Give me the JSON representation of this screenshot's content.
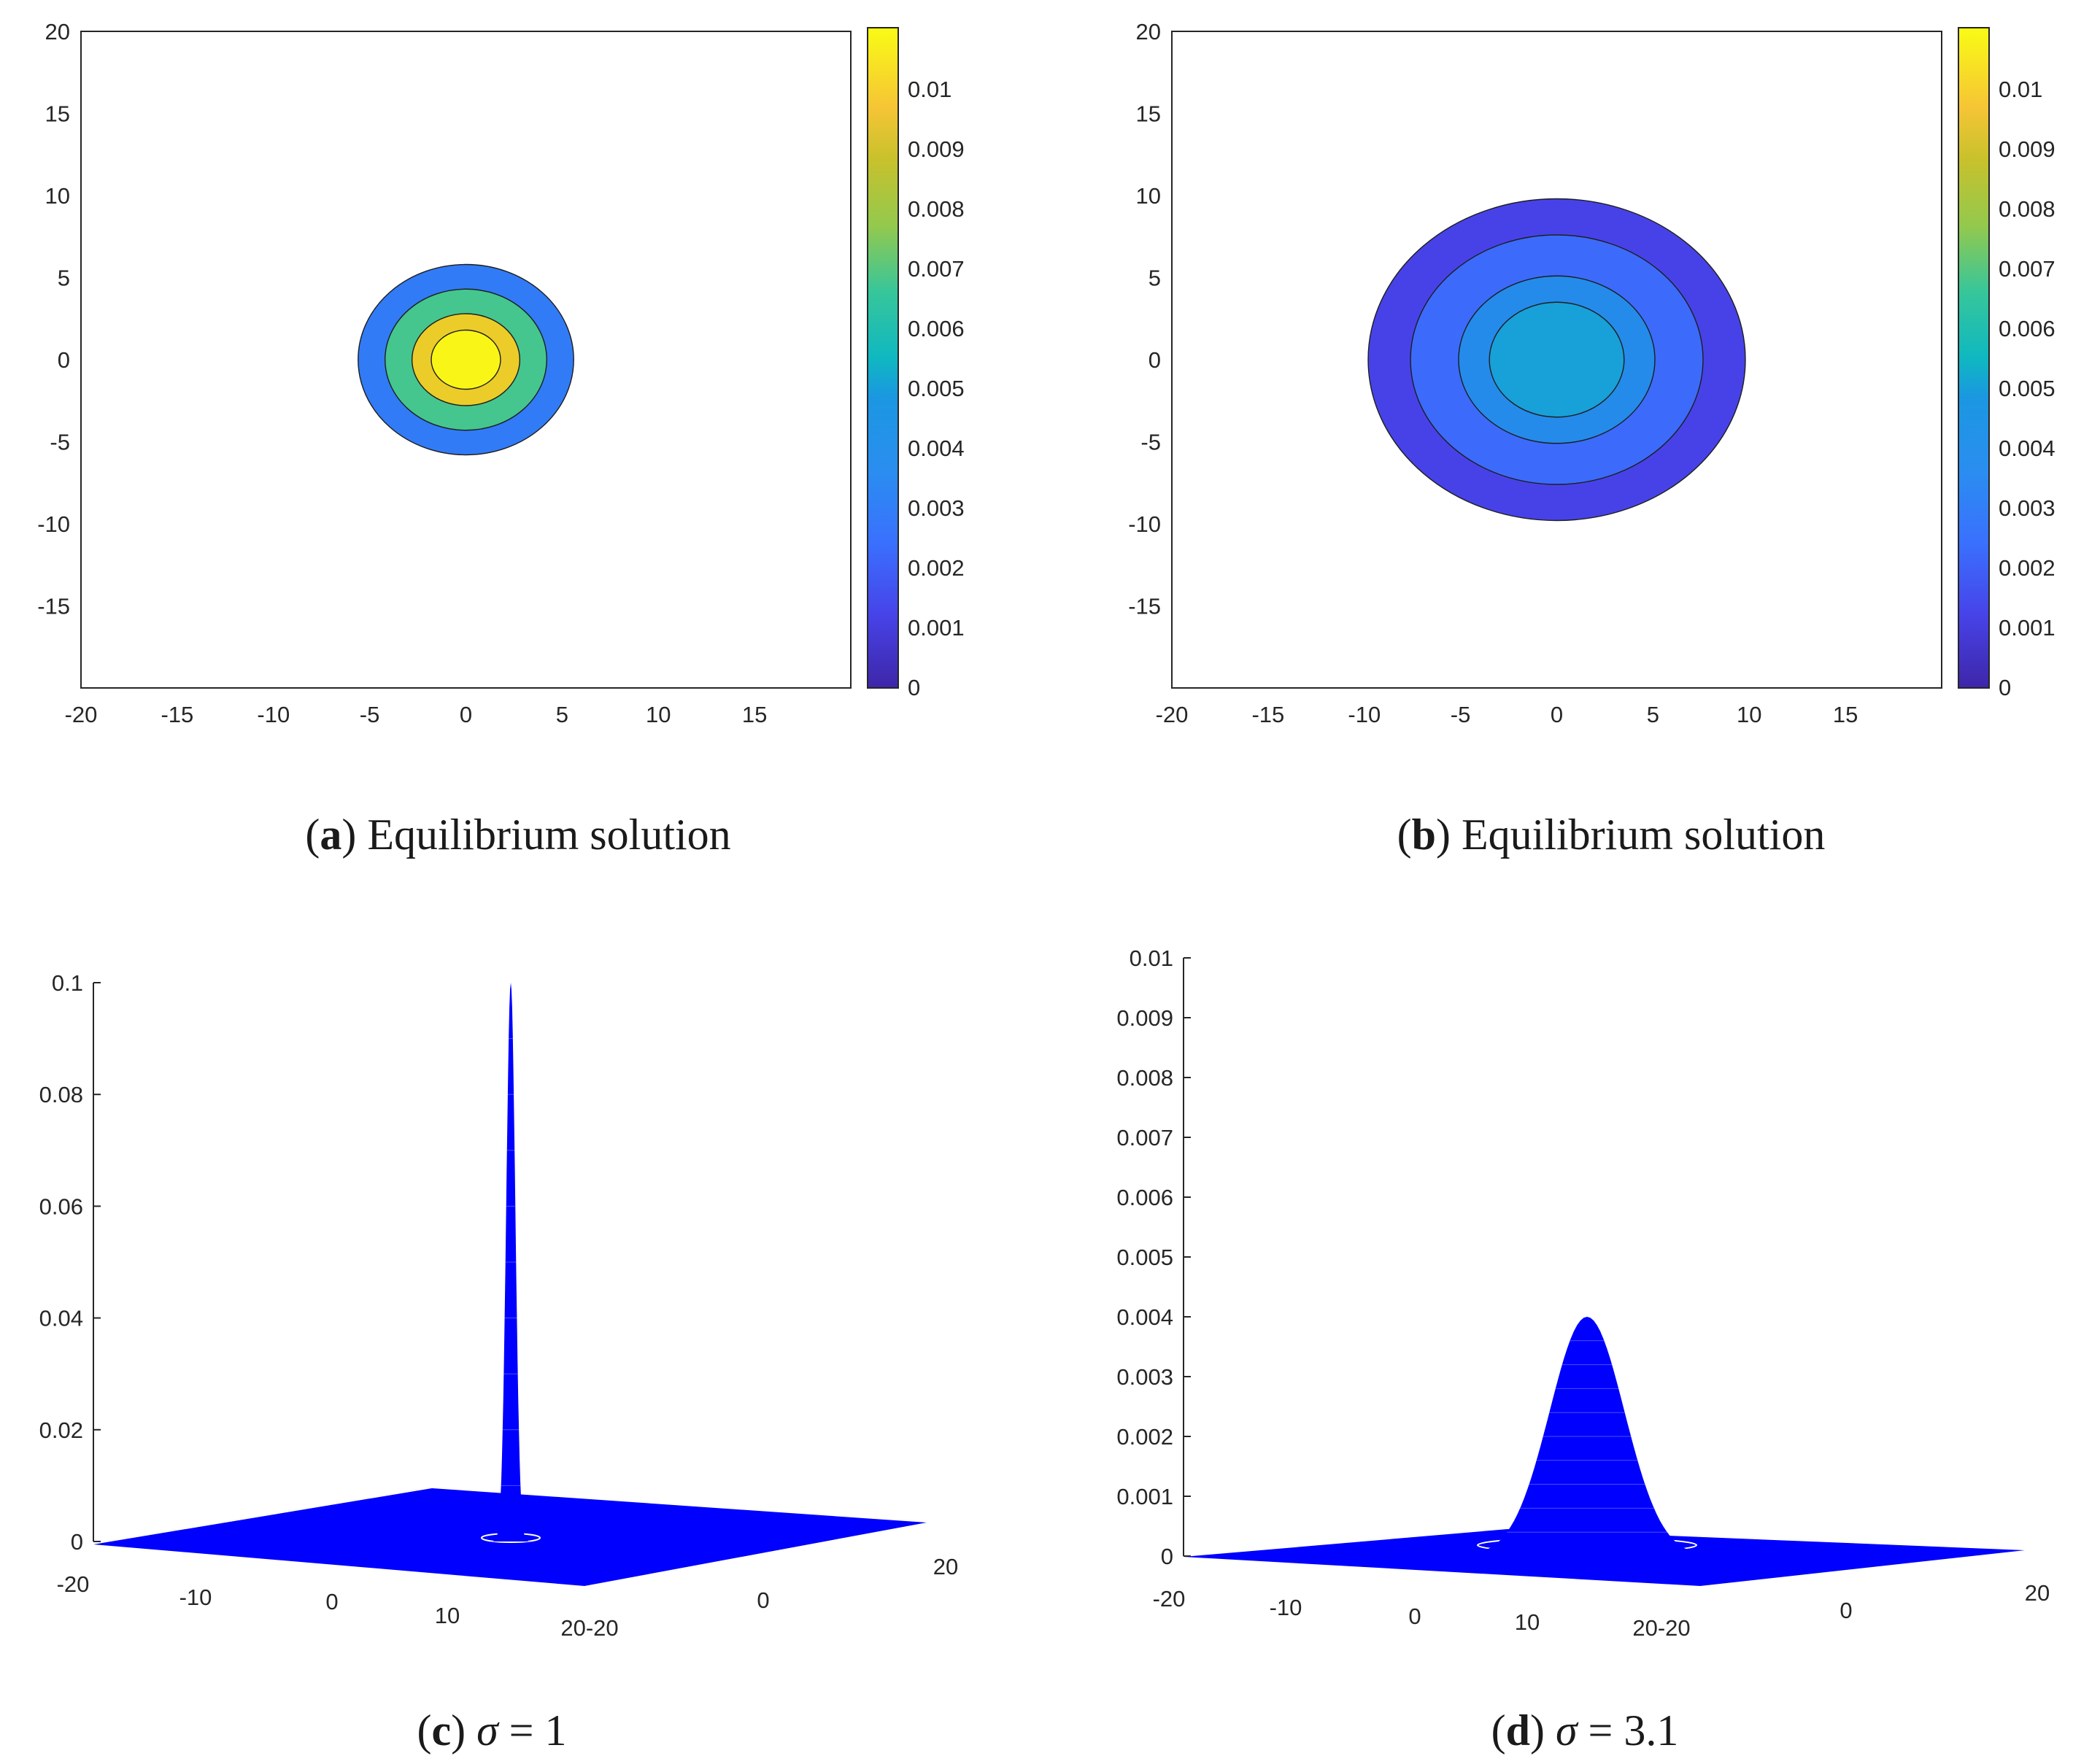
{
  "colors": {
    "mesh": "#0000ff",
    "axis": "#262626",
    "parula": [
      "#3e26a8",
      "#4743e8",
      "#3a70fe",
      "#1b97e1",
      "#0fb8c0",
      "#37c69a",
      "#93c94d",
      "#e0ba30",
      "#f6dd23",
      "#f9fb15"
    ]
  },
  "chart_data": [
    {
      "id": "a",
      "type": "contour",
      "caption": {
        "label": "a",
        "text": "Equilibrium solution"
      },
      "xlim": [
        -20,
        20
      ],
      "ylim": [
        -20,
        20
      ],
      "xticks": [
        "-20",
        "-15",
        "-10",
        "-5",
        "0",
        "5",
        "10",
        "15"
      ],
      "yticks": [
        "20",
        "15",
        "10",
        "5",
        "0",
        "-5",
        "-10",
        "-15"
      ],
      "colorbar": {
        "min": 0,
        "max": 0.011,
        "ticks": [
          "0.01",
          "0.009",
          "0.008",
          "0.007",
          "0.006",
          "0.005",
          "0.004",
          "0.003",
          "0.002",
          "0.001",
          "0"
        ]
      },
      "levels": [
        {
          "rx": 5.6,
          "ry": 5.8,
          "value": 0.0028
        },
        {
          "rx": 4.2,
          "ry": 4.3,
          "value": 0.0063
        },
        {
          "rx": 2.8,
          "ry": 2.8,
          "value": 0.0092
        },
        {
          "rx": 1.8,
          "ry": 1.8,
          "value": 0.0108
        }
      ]
    },
    {
      "id": "b",
      "type": "contour",
      "caption": {
        "label": "b",
        "text": "Equilibrium solution"
      },
      "xlim": [
        -20,
        20
      ],
      "ylim": [
        -20,
        20
      ],
      "xticks": [
        "-20",
        "-15",
        "-10",
        "-5",
        "0",
        "5",
        "10",
        "15"
      ],
      "yticks": [
        "20",
        "15",
        "10",
        "5",
        "0",
        "-5",
        "-10",
        "-15"
      ],
      "colorbar": {
        "min": 0,
        "max": 0.011,
        "ticks": [
          "0.01",
          "0.009",
          "0.008",
          "0.007",
          "0.006",
          "0.005",
          "0.004",
          "0.003",
          "0.002",
          "0.001",
          "0"
        ]
      },
      "levels": [
        {
          "rx": 9.8,
          "ry": 9.8,
          "value": 0.0012
        },
        {
          "rx": 7.6,
          "ry": 7.6,
          "value": 0.0023
        },
        {
          "rx": 5.1,
          "ry": 5.1,
          "value": 0.0033
        },
        {
          "rx": 3.5,
          "ry": 3.5,
          "value": 0.004
        }
      ]
    },
    {
      "id": "c",
      "type": "surface-mesh",
      "caption": {
        "label": "c",
        "sym": "σ",
        "rest": " = 1"
      },
      "zlim": [
        0,
        0.1
      ],
      "sigma": 1,
      "peak": 0.1,
      "zticks": [
        "0.1",
        "0.08",
        "0.06",
        "0.04",
        "0.02",
        "0"
      ],
      "xticks": [
        "-20",
        "-10",
        "0",
        "10",
        "20-20"
      ],
      "yticks": [
        "0",
        "20"
      ]
    },
    {
      "id": "d",
      "type": "surface-mesh",
      "caption": {
        "label": "d",
        "sym": "σ",
        "rest": " = 3.1"
      },
      "zlim": [
        0,
        0.01
      ],
      "sigma": 3.1,
      "peak": 0.004,
      "zticks": [
        "0.01",
        "0.009",
        "0.008",
        "0.007",
        "0.006",
        "0.005",
        "0.004",
        "0.003",
        "0.002",
        "0.001",
        "0"
      ],
      "xticks": [
        "-20",
        "-10",
        "0",
        "10",
        "20-20"
      ],
      "yticks": [
        "0",
        "20"
      ]
    }
  ]
}
